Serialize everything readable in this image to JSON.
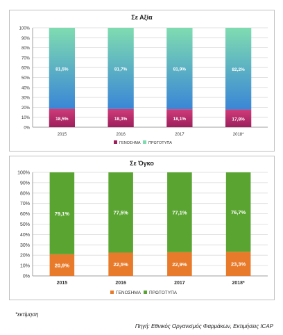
{
  "colors": {
    "generic_top": "#d03c7a",
    "generic_bottom": "#9c1f5c",
    "original_top": "#7fdcb0",
    "original_bottom": "#3a86d6",
    "generic2": "#e87b2b",
    "original2": "#5aa532",
    "gridline": "#d9d9d9",
    "axis": "#888888"
  },
  "chart_data": [
    {
      "type": "bar",
      "stacked": true,
      "title": "Σε Αξία",
      "categories": [
        "2015",
        "2016",
        "2017",
        "2018*"
      ],
      "series": [
        {
          "name": "ΓΕΝΟΣΗΜΑ",
          "values": [
            18.5,
            18.3,
            18.1,
            17.8
          ],
          "labels": [
            "18,5%",
            "18,3%",
            "18,1%",
            "17,8%"
          ]
        },
        {
          "name": "ΠΡΩΤΟΤΥΠΑ",
          "values": [
            81.5,
            81.7,
            81.9,
            82.2
          ],
          "labels": [
            "81,5%",
            "81,7%",
            "81,9%",
            "82,2%"
          ]
        }
      ],
      "ylim": [
        0,
        100
      ],
      "yticks": [
        "0%",
        "10%",
        "20%",
        "30%",
        "40%",
        "50%",
        "60%",
        "70%",
        "80%",
        "90%",
        "100%"
      ],
      "grid": true,
      "legend": "bottom"
    },
    {
      "type": "bar",
      "stacked": true,
      "title": "Σε Όγκο",
      "categories": [
        "2015",
        "2016",
        "2017",
        "2018*"
      ],
      "series": [
        {
          "name": "ΓΕΝΟΣΗΜΑ",
          "values": [
            20.9,
            22.5,
            22.9,
            23.3
          ],
          "labels": [
            "20,9%",
            "22,5%",
            "22,9%",
            "23,3%"
          ]
        },
        {
          "name": "ΠΡΩΤΟΤΥΠΑ",
          "values": [
            79.1,
            77.5,
            77.1,
            76.7
          ],
          "labels": [
            "79,1%",
            "77,5%",
            "77,1%",
            "76,7%"
          ]
        }
      ],
      "ylim": [
        0,
        100
      ],
      "yticks": [
        "0%",
        "10%",
        "20%",
        "30%",
        "40%",
        "50%",
        "60%",
        "70%",
        "80%",
        "90%",
        "100%"
      ],
      "grid": true,
      "legend": "bottom"
    }
  ],
  "footnote": "*εκτίμηση",
  "source": "Πηγή: Εθνικός Οργανισμός Φαρμάκων, Εκτιμήσεις ICAP"
}
